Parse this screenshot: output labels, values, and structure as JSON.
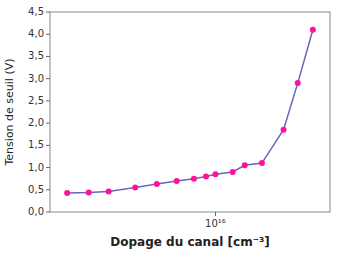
{
  "chart_data": {
    "type": "line",
    "x": [
      300000000000000.0,
      500000000000000.0,
      800000000000000.0,
      1500000000000000.0,
      2500000000000000.0,
      4000000000000000.0,
      6000000000000000.0,
      8000000000000000.0,
      1e+16,
      1.5e+16,
      2e+16,
      3e+16,
      5e+16,
      7e+16,
      1e+17
    ],
    "series": [
      {
        "color": "#6666bb",
        "marker": "circle",
        "colors": [
          "#ff1199",
          "#ff1199",
          "#ff1199",
          "#ff1199",
          "#ff1199",
          "#ff1199",
          "#ff1199",
          "#ff1199",
          "#ff1199",
          "#ff1199",
          "#ff1199",
          "#ff1199",
          "#ff1199",
          "#ff1199",
          "#ff1199"
        ],
        "values": [
          0.43,
          0.44,
          0.46,
          0.55,
          0.63,
          0.7,
          0.75,
          0.8,
          0.85,
          0.9,
          1.05,
          1.1,
          1.85,
          2.9,
          4.1
        ]
      }
    ],
    "xlabel": "Dopage du canal [cm⁻³]",
    "ylabel": "Tension de seuil (V)",
    "log": "x",
    "xlim": [
      200000000000000.0,
      1.5e+17
    ],
    "ylim": [
      0.0,
      4.5
    ],
    "xticks": [
      {
        "value": 1e+16,
        "label": "10¹⁶"
      }
    ],
    "yticks": [
      {
        "value": 0.0,
        "label": "0,0"
      },
      {
        "value": 0.5,
        "label": "0,5"
      },
      {
        "value": 1.0,
        "label": "1,0"
      },
      {
        "value": 1.5,
        "label": "1,5"
      },
      {
        "value": 2.0,
        "label": "2,0"
      },
      {
        "value": 2.5,
        "label": "2,5"
      },
      {
        "value": 3.0,
        "label": "3,0"
      },
      {
        "value": 3.5,
        "label": "3,5"
      },
      {
        "value": 4.0,
        "label": "4,0"
      },
      {
        "value": 4.5,
        "label": "4,5"
      }
    ],
    "grid": false
  }
}
